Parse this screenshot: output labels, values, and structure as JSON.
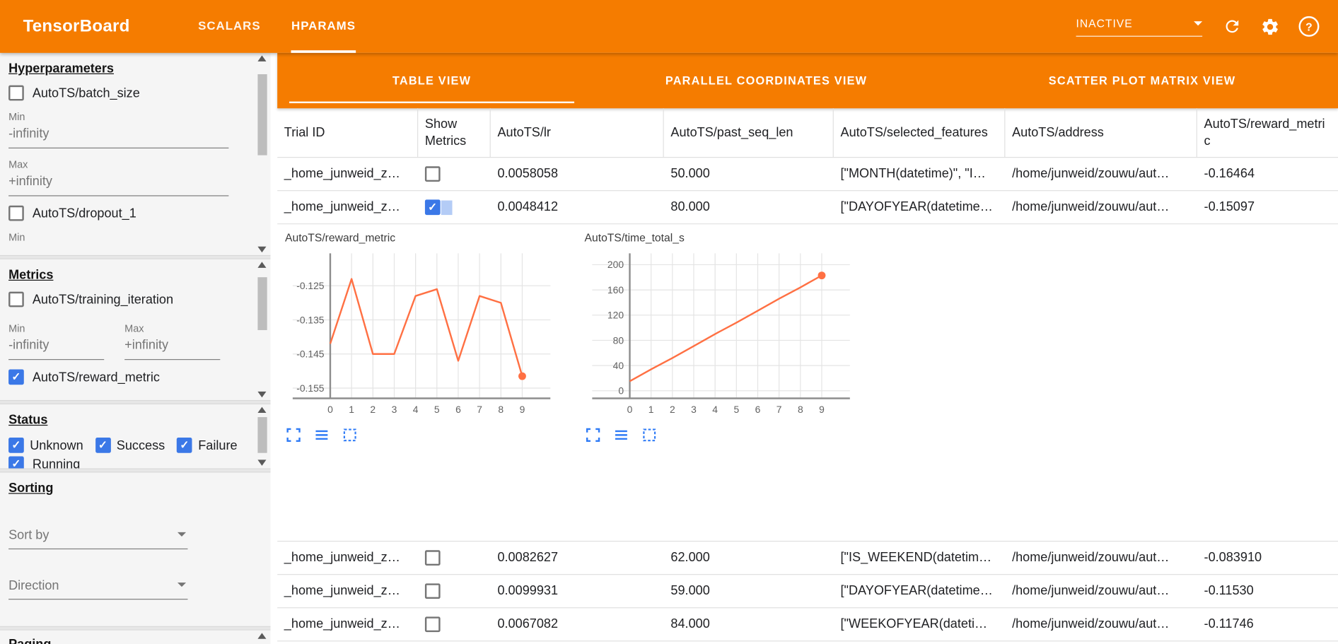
{
  "colors": {
    "primary_orange": "#f57c00",
    "checkbox_blue": "#3b78e7",
    "chart_line": "#ff7043"
  },
  "icons": {
    "header": [
      "refresh-icon",
      "gear-icon",
      "help-icon",
      "chevron-down-icon"
    ],
    "chart_tools": [
      "expand-chart-icon",
      "toggle-series-icon",
      "marquee-select-icon"
    ],
    "sidebar": [
      "scrollbar-up-icon",
      "scrollbar-down-icon",
      "chevron-down-icon"
    ]
  },
  "header": {
    "logo": "TensorBoard",
    "nav_tabs": [
      {
        "label": "SCALARS",
        "active": false
      },
      {
        "label": "HPARAMS",
        "active": true
      }
    ],
    "reload_select": "INACTIVE"
  },
  "sidebar": {
    "hyperparameters": {
      "heading": "Hyperparameters",
      "min_label": "Min",
      "max_label": "Max",
      "min_value": "-infinity",
      "max_value": "+infinity",
      "items": [
        {
          "label": "AutoTS/batch_size",
          "checked": false
        },
        {
          "label": "AutoTS/dropout_1",
          "checked": false
        }
      ]
    },
    "metrics": {
      "heading": "Metrics",
      "min_label": "Min",
      "max_label": "Max",
      "min_value": "-infinity",
      "max_value": "+infinity",
      "items": [
        {
          "label": "AutoTS/training_iteration",
          "checked": false
        },
        {
          "label": "AutoTS/reward_metric",
          "checked": true
        }
      ]
    },
    "status": {
      "heading": "Status",
      "items": [
        {
          "label": "Unknown",
          "checked": true
        },
        {
          "label": "Success",
          "checked": true
        },
        {
          "label": "Failure",
          "checked": true
        },
        {
          "label": "Running",
          "checked": true
        }
      ]
    },
    "sorting": {
      "heading": "Sorting",
      "sort_by_placeholder": "Sort by",
      "direction_placeholder": "Direction"
    },
    "paging": {
      "heading": "Paging"
    }
  },
  "main": {
    "view_tabs": [
      {
        "label": "TABLE VIEW",
        "active": true
      },
      {
        "label": "PARALLEL COORDINATES VIEW",
        "active": false
      },
      {
        "label": "SCATTER PLOT MATRIX VIEW",
        "active": false
      }
    ],
    "table": {
      "columns": [
        "Trial ID",
        "Show Metrics",
        "AutoTS/lr",
        "AutoTS/past_seq_len",
        "AutoTS/selected_features",
        "AutoTS/address",
        "AutoTS/reward_metric"
      ],
      "rows": [
        {
          "trial_id": "_home_junweid_z…",
          "show_metrics": false,
          "lr": "0.0058058",
          "past_seq_len": "50.000",
          "selected_features": "[\"MONTH(datetime)\", \"I…",
          "address": "/home/junweid/zouwu/aut…",
          "reward_metric": "-0.16464"
        },
        {
          "trial_id": "_home_junweid_z…",
          "show_metrics": true,
          "lr": "0.0048412",
          "past_seq_len": "80.000",
          "selected_features": "[\"DAYOFYEAR(datetime…",
          "address": "/home/junweid/zouwu/aut…",
          "reward_metric": "-0.15097"
        },
        {
          "trial_id": "_home_junweid_z…",
          "show_metrics": false,
          "lr": "0.0082627",
          "past_seq_len": "62.000",
          "selected_features": "[\"IS_WEEKEND(datetim…",
          "address": "/home/junweid/zouwu/aut…",
          "reward_metric": "-0.083910"
        },
        {
          "trial_id": "_home_junweid_z…",
          "show_metrics": false,
          "lr": "0.0099931",
          "past_seq_len": "59.000",
          "selected_features": "[\"DAYOFYEAR(datetime…",
          "address": "/home/junweid/zouwu/aut…",
          "reward_metric": "-0.11530"
        },
        {
          "trial_id": "_home_junweid_z…",
          "show_metrics": false,
          "lr": "0.0067082",
          "past_seq_len": "84.000",
          "selected_features": "[\"WEEKOFYEAR(dateti…",
          "address": "/home/junweid/zouwu/aut…",
          "reward_metric": "-0.11746"
        }
      ]
    }
  },
  "chart_data": [
    {
      "type": "line",
      "title": "AutoTS/reward_metric",
      "x": [
        0,
        1,
        2,
        3,
        4,
        5,
        6,
        7,
        8,
        9
      ],
      "values": [
        -0.142,
        -0.123,
        -0.145,
        -0.145,
        -0.128,
        -0.126,
        -0.147,
        -0.128,
        -0.13,
        -0.1515
      ],
      "ylim": [
        -0.158,
        -0.1155
      ],
      "yticks": [
        {
          "v": -0.125,
          "label": "-0.125"
        },
        {
          "v": -0.135,
          "label": "-0.135"
        },
        {
          "v": -0.145,
          "label": "-0.145"
        },
        {
          "v": -0.155,
          "label": "-0.155"
        }
      ],
      "xlabel": "",
      "ylabel": "",
      "grid": true,
      "legend": "none",
      "line_color": "#ff7043",
      "end_marker": true
    },
    {
      "type": "line",
      "title": "AutoTS/time_total_s",
      "x": [
        0,
        1,
        2,
        3,
        4,
        5,
        6,
        7,
        8,
        9
      ],
      "values": [
        15,
        34,
        52,
        71,
        90,
        108,
        127,
        146,
        164,
        183
      ],
      "ylim": [
        -12,
        218
      ],
      "yticks": [
        {
          "v": 200,
          "label": "200"
        },
        {
          "v": 160,
          "label": "160"
        },
        {
          "v": 120,
          "label": "120"
        },
        {
          "v": 80,
          "label": "80"
        },
        {
          "v": 40,
          "label": "40"
        },
        {
          "v": 0,
          "label": "0"
        }
      ],
      "xlabel": "",
      "ylabel": "",
      "grid": true,
      "legend": "none",
      "line_color": "#ff7043",
      "end_marker": true
    }
  ]
}
